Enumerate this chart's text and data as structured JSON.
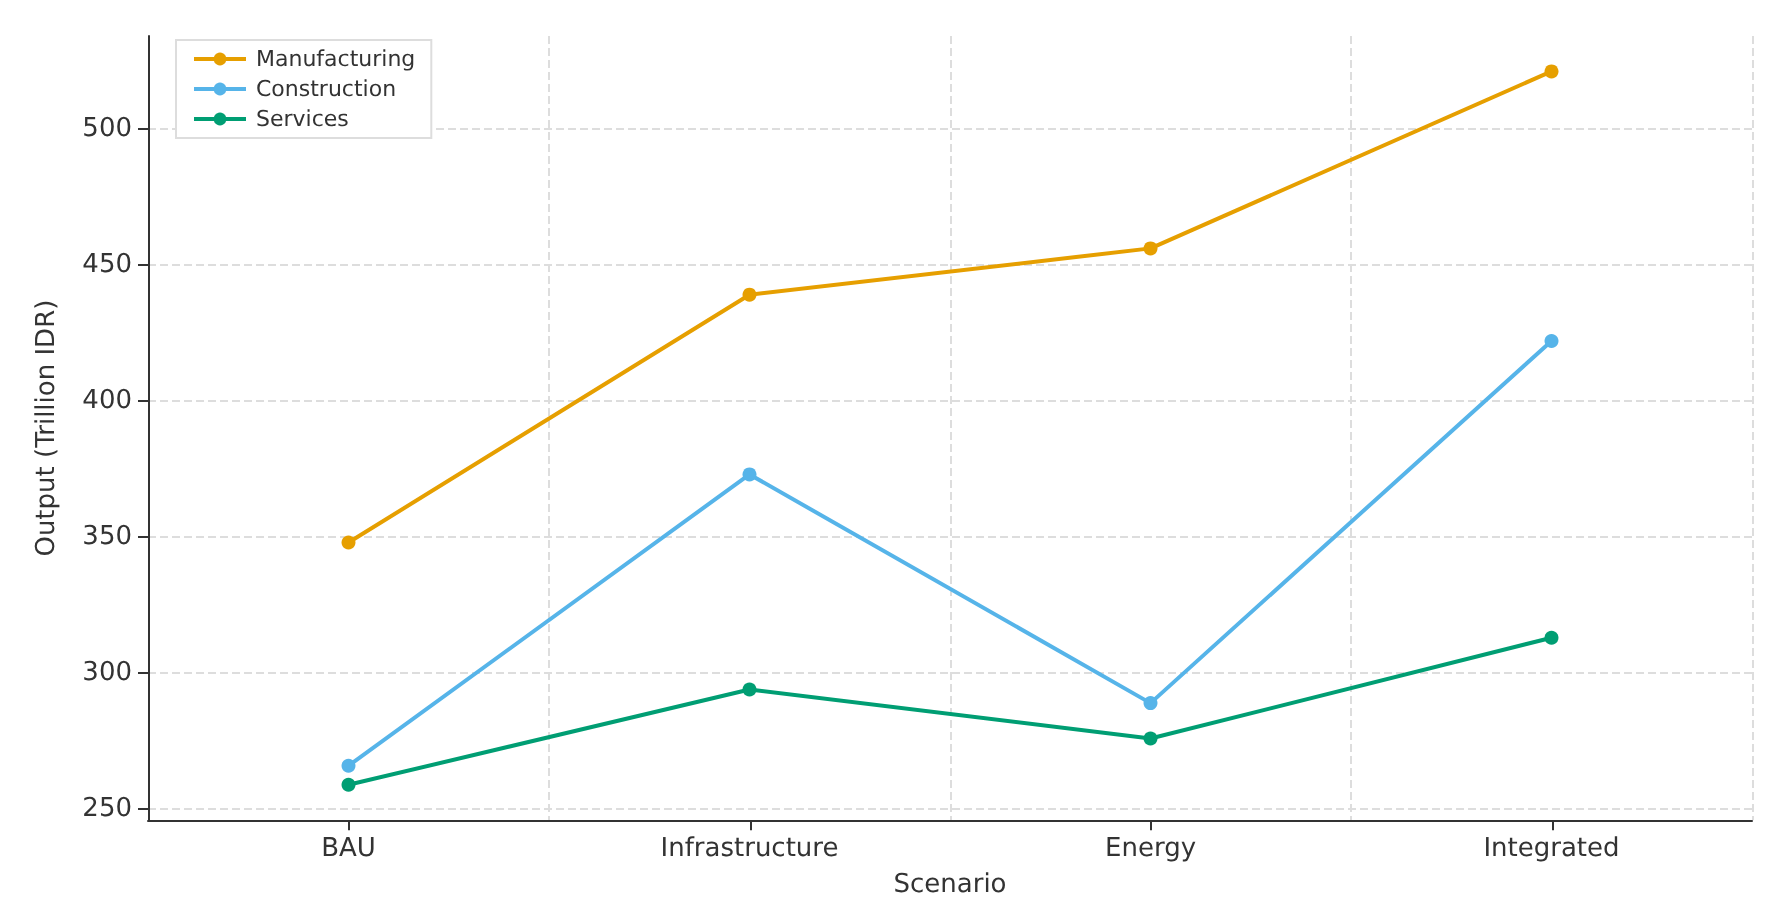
{
  "chart_data": {
    "type": "line",
    "xlabel": "Scenario",
    "ylabel": "Output (Trillion IDR)",
    "categories": [
      "BAU",
      "Infrastructure",
      "Energy",
      "Integrated"
    ],
    "series": [
      {
        "name": "Manufacturing",
        "color": "#e69f00",
        "values": [
          348,
          439,
          456,
          521
        ]
      },
      {
        "name": "Construction",
        "color": "#56b4e9",
        "values": [
          266,
          373,
          289,
          422
        ]
      },
      {
        "name": "Services",
        "color": "#009e73",
        "values": [
          259,
          294,
          276,
          313
        ]
      }
    ],
    "ylim": [
      246,
      534
    ],
    "yticks": [
      250,
      300,
      350,
      400,
      450,
      500
    ],
    "grid": true,
    "legend": "top left",
    "marker": "circle",
    "line_style": "solid"
  }
}
